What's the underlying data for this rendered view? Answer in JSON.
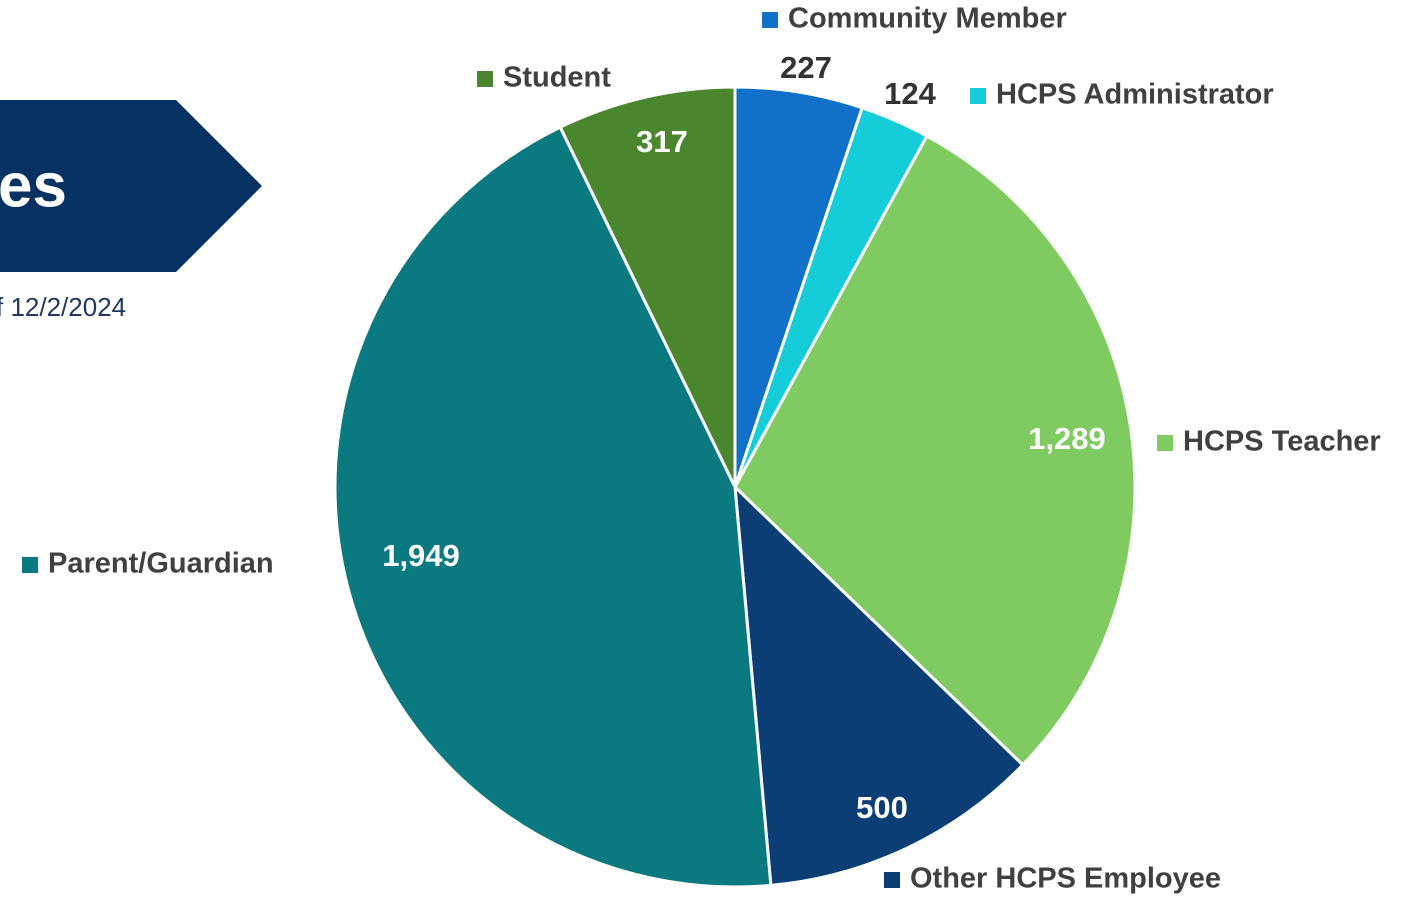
{
  "chart_data": {
    "type": "pie",
    "title": "es",
    "subtitle": "f 12/2/2024",
    "categories": [
      "Community Member",
      "HCPS Administrator",
      "HCPS Teacher",
      "Other HCPS Employee",
      "Parent/Guardian",
      "Student"
    ],
    "values": [
      227,
      124,
      1289,
      500,
      1949,
      317
    ],
    "value_labels": [
      "227",
      "124",
      "1,289",
      "500",
      "1,949",
      "317"
    ],
    "colors": [
      "#1170c8",
      "#14cdd8",
      "#7fcb62",
      "#0b3e74",
      "#0a7a80",
      "#4a862e"
    ]
  }
}
